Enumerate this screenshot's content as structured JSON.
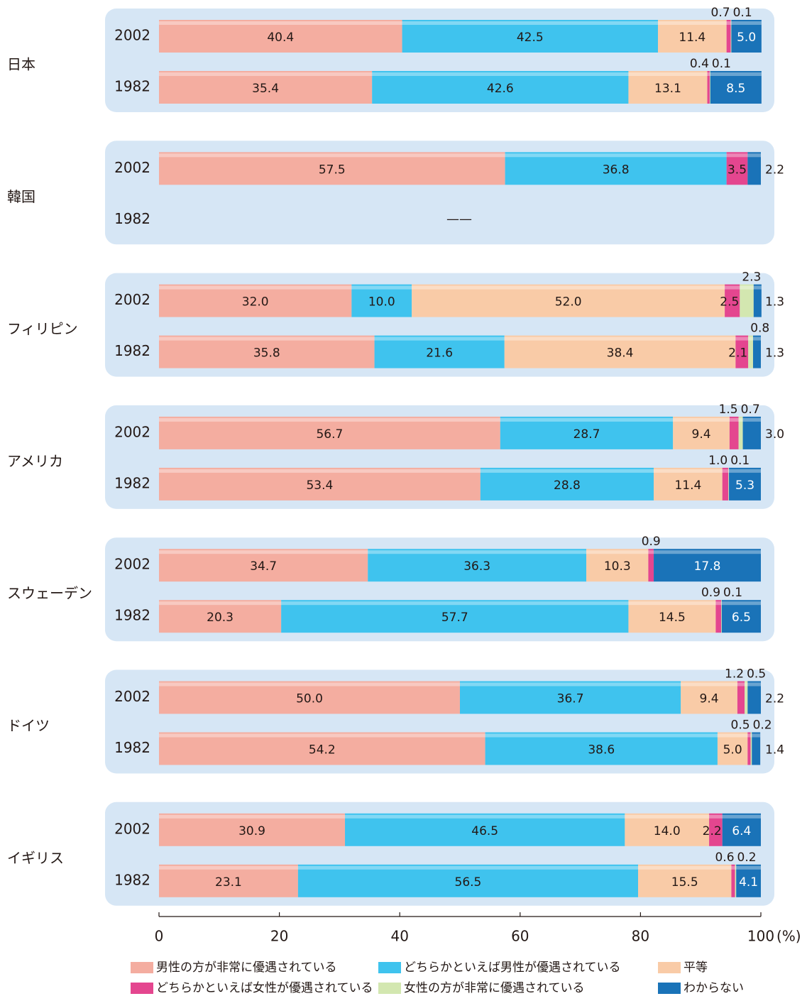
{
  "chart_data": {
    "type": "bar",
    "orientation": "horizontal",
    "stacked": true,
    "groups": [
      "日本",
      "韓国",
      "フィリピン",
      "アメリカ",
      "スウェーデン",
      "ドイツ",
      "イギリス"
    ],
    "categories": [
      "2002",
      "1982",
      "2002",
      "1982",
      "2002",
      "1982",
      "2002",
      "1982",
      "2002",
      "1982",
      "2002",
      "1982",
      "2002",
      "1982"
    ],
    "no_data_label": "——",
    "x_unit": "(%)",
    "xlim": [
      0,
      100
    ],
    "xticks": [
      0,
      20,
      40,
      60,
      80,
      100
    ],
    "series": [
      {
        "name": "男性の方が非常に優遇されている",
        "color": "#f4ada0",
        "values": [
          40.4,
          35.4,
          57.5,
          null,
          32.0,
          35.8,
          56.7,
          53.4,
          34.7,
          20.3,
          50.0,
          54.2,
          30.9,
          23.1
        ],
        "value_labels": [
          "40.4",
          "35.4",
          "57.5",
          null,
          "32.0",
          "35.8",
          "56.7",
          "53.4",
          "34.7",
          "20.3",
          "50.0",
          "54.2",
          "30.9",
          "23.1"
        ]
      },
      {
        "name": "どちらかといえば男性が優遇されている",
        "color": "#3fc3ee",
        "values": [
          42.5,
          42.6,
          36.8,
          null,
          10.0,
          21.6,
          28.7,
          28.8,
          36.3,
          57.7,
          36.7,
          38.6,
          46.5,
          56.5
        ],
        "value_labels": [
          "42.5",
          "42.6",
          "36.8",
          null,
          "10.0",
          "21.6",
          "28.7",
          "28.8",
          "36.3",
          "57.7",
          "36.7",
          "38.6",
          "46.5",
          "56.5"
        ]
      },
      {
        "name": "平等",
        "color": "#f9cba7",
        "values": [
          11.4,
          13.1,
          null,
          null,
          52.0,
          38.4,
          9.4,
          11.4,
          10.3,
          14.5,
          9.4,
          5.0,
          14.0,
          15.5
        ],
        "value_labels": [
          "11.4",
          "13.1",
          null,
          null,
          "52.0",
          "38.4",
          "9.4",
          "11.4",
          "10.3",
          "14.5",
          "9.4",
          "5.0",
          "14.0",
          "15.5"
        ]
      },
      {
        "name": "どちらかといえば女性が優遇されている",
        "color": "#e4468f",
        "values": [
          0.7,
          0.4,
          3.5,
          null,
          2.5,
          2.1,
          1.5,
          1.0,
          0.9,
          0.9,
          1.2,
          0.5,
          2.2,
          0.6
        ],
        "value_labels": [
          "0.7",
          "0.4",
          "3.5",
          null,
          "2.5",
          "2.1",
          "1.5",
          "1.0",
          "0.9",
          "0.9",
          "1.2",
          "0.5",
          "2.2",
          "0.6"
        ]
      },
      {
        "name": "女性の方が非常に優遇されている",
        "color": "#d3e7b0",
        "values": [
          0.1,
          0.1,
          null,
          null,
          2.3,
          0.8,
          0.7,
          0.1,
          null,
          0.1,
          0.5,
          0.2,
          null,
          0.2
        ],
        "value_labels": [
          "0.1",
          "0.1",
          null,
          null,
          "2.3",
          "0.8",
          "0.7",
          "0.1",
          null,
          "0.1",
          "0.5",
          "0.2",
          null,
          "0.2"
        ]
      },
      {
        "name": "わからない",
        "color": "#1a73b8",
        "values": [
          5.0,
          8.5,
          2.2,
          null,
          1.3,
          1.3,
          3.0,
          5.3,
          17.8,
          6.5,
          2.2,
          1.4,
          6.4,
          4.1
        ],
        "value_labels": [
          "5.0",
          "8.5",
          "2.2",
          null,
          "1.3",
          "1.3",
          "3.0",
          "5.3",
          "17.8",
          "6.5",
          "2.2",
          "1.4",
          "6.4",
          "4.1"
        ]
      }
    ]
  }
}
